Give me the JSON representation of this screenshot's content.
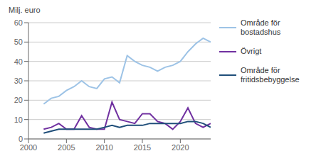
{
  "chart_data": {
    "type": "line",
    "ylabel": "Milj. euro",
    "x": [
      2002,
      2003,
      2004,
      2005,
      2006,
      2007,
      2008,
      2009,
      2010,
      2011,
      2012,
      2013,
      2014,
      2015,
      2016,
      2017,
      2018,
      2019,
      2020,
      2021,
      2022,
      2023,
      2024
    ],
    "series": [
      {
        "name": "Område för\nbostadshus",
        "color": "#9DC3E6",
        "values": [
          18,
          21,
          22,
          25,
          27,
          30,
          27,
          26,
          31,
          32,
          29,
          43,
          40,
          38,
          37,
          35,
          37,
          38,
          40,
          45,
          49,
          52,
          50
        ]
      },
      {
        "name": "Övrigt",
        "color": "#7030A0",
        "values": [
          5,
          6,
          8,
          5,
          5,
          12,
          6,
          5,
          5,
          19,
          10,
          9,
          8,
          13,
          13,
          9,
          8,
          5,
          9,
          16,
          8,
          6,
          8
        ]
      },
      {
        "name": "Område för\nfritidsbebyggelse",
        "color": "#1F4E79",
        "values": [
          3,
          4,
          5,
          5,
          5,
          5,
          5,
          5,
          6,
          7,
          6,
          7,
          7,
          7,
          8,
          8,
          8,
          8,
          8,
          9,
          9,
          8,
          6
        ]
      }
    ],
    "xlim": [
      2000,
      2024
    ],
    "xticks": [
      2000,
      2005,
      2010,
      2015,
      2020
    ],
    "ylim": [
      0,
      60
    ],
    "yticks": [
      0,
      10,
      20,
      30,
      40,
      50,
      60
    ],
    "grid": "y",
    "legend": "right"
  }
}
